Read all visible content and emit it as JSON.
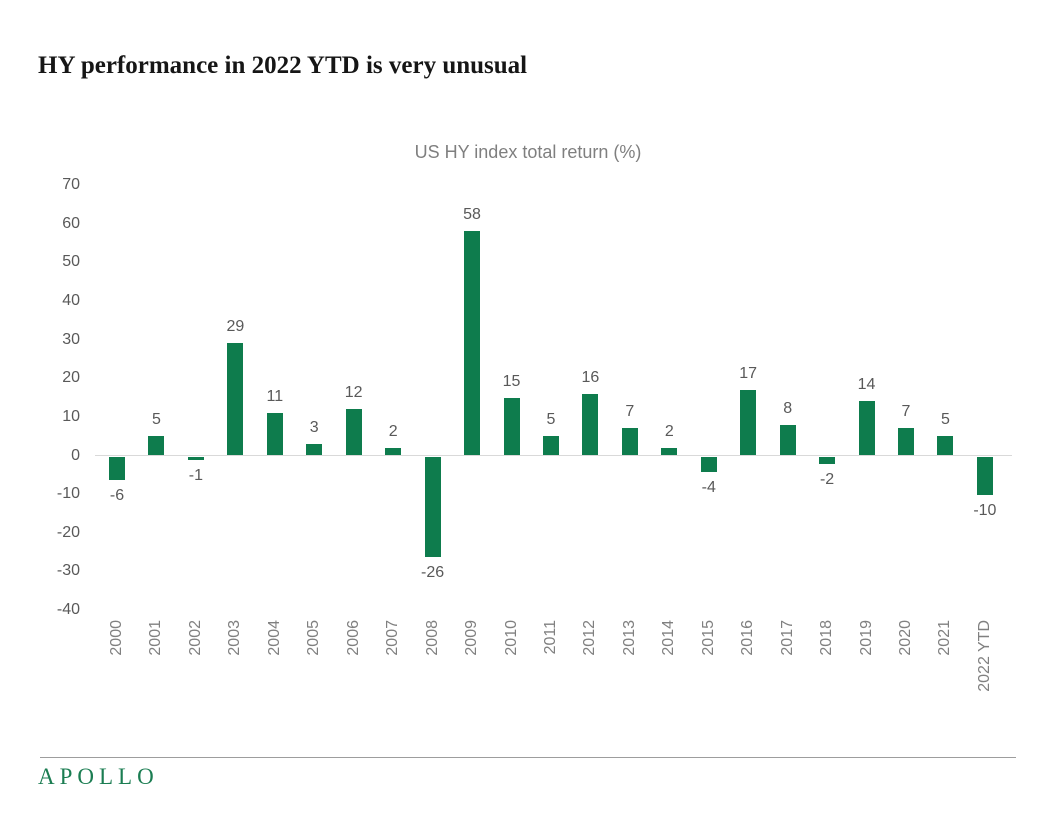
{
  "page": {
    "title": "HY performance in 2022 YTD is very unusual"
  },
  "chart_data": {
    "type": "bar",
    "title": "US HY index total return (%)",
    "categories": [
      "2000",
      "2001",
      "2002",
      "2003",
      "2004",
      "2005",
      "2006",
      "2007",
      "2008",
      "2009",
      "2010",
      "2011",
      "2012",
      "2013",
      "2014",
      "2015",
      "2016",
      "2017",
      "2018",
      "2019",
      "2020",
      "2021",
      "2022 YTD"
    ],
    "values": [
      -6,
      5,
      -1,
      29,
      11,
      3,
      12,
      2,
      -26,
      58,
      15,
      5,
      16,
      7,
      2,
      -4,
      17,
      8,
      -2,
      14,
      7,
      5,
      -10
    ],
    "xlabel": "",
    "ylabel": "",
    "ylim": [
      -40,
      70
    ],
    "yticks": [
      70,
      60,
      50,
      40,
      30,
      20,
      10,
      0,
      -10,
      -20,
      -30,
      -40
    ],
    "grid": false,
    "legend": "none",
    "data_labels": true,
    "bar_color": "#0e7c4d",
    "axis_line_color": "#d9d9d9",
    "tick_label_color": "#595959",
    "category_label_color": "#808080"
  },
  "footer": {
    "logo": "APOLLO",
    "logo_color": "#1b7d52"
  }
}
